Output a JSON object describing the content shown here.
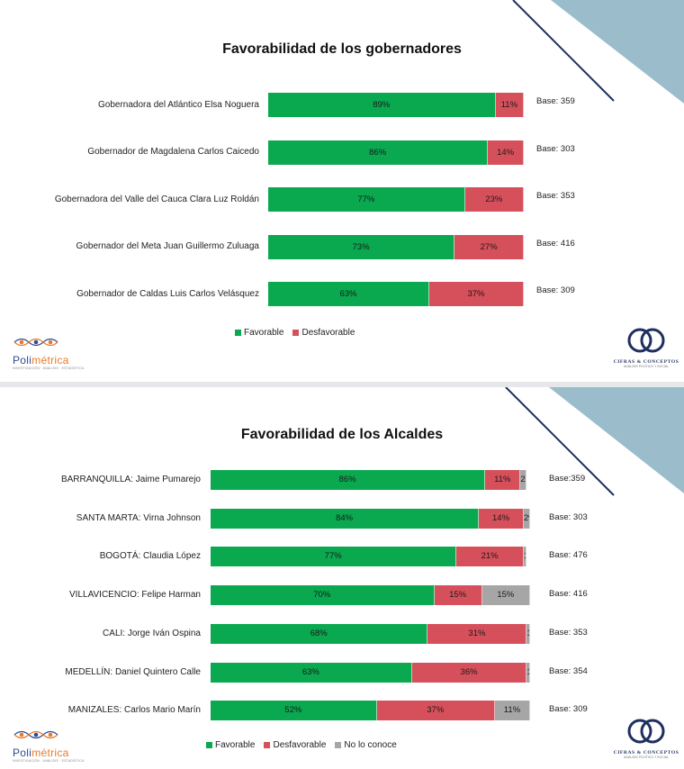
{
  "colors": {
    "favorable": "#0aa84f",
    "desfavorable": "#d6505b",
    "no_lo_conoce": "#a6a6a6",
    "deco_triangle": "#9bbccb",
    "deco_line": "#1f2f5f"
  },
  "chart_data": [
    {
      "type": "bar",
      "orientation": "horizontal",
      "stacked": true,
      "title": "Favorabilidad de los gobernadores",
      "categories": [
        "Gobernadora del Atlántico Elsa Noguera",
        "Gobernador de Magdalena Carlos Caicedo",
        "Gobernadora del Valle del Cauca Clara Luz Roldán",
        "Gobernador del Meta Juan Guillermo Zuluaga",
        "Gobernador de Caldas Luis Carlos Velásquez"
      ],
      "series": [
        {
          "name": "Favorable",
          "values": [
            89,
            86,
            77,
            73,
            63
          ],
          "labels": [
            "89%",
            "86%",
            "77%",
            "73%",
            "63%"
          ]
        },
        {
          "name": "Desfavorable",
          "values": [
            11,
            14,
            23,
            27,
            37
          ],
          "labels": [
            "11%",
            "14%",
            "23%",
            "27%",
            "37%"
          ]
        }
      ],
      "bases": [
        "Base: 359",
        "Base: 303",
        "Base: 353",
        "Base: 416",
        "Base: 309"
      ],
      "legend": [
        "Favorable",
        "Desfavorable"
      ],
      "legend_position": "bottom",
      "xlim": [
        0,
        100
      ]
    },
    {
      "type": "bar",
      "orientation": "horizontal",
      "stacked": true,
      "title": "Favorabilidad de los Alcaldes",
      "categories": [
        "BARRANQUILLA: Jaime Pumarejo",
        "SANTA MARTA: Virna Johnson",
        "BOGOTÁ: Claudia López",
        "VILLAVICENCIO: Felipe Harman",
        "CALI: Jorge Iván Ospina",
        "MEDELLÍN: Daniel Quintero Calle",
        "MANIZALES: Carlos Mario Marín"
      ],
      "series": [
        {
          "name": "Favorable",
          "values": [
            86,
            84,
            77,
            70,
            68,
            63,
            52
          ],
          "labels": [
            "86%",
            "84%",
            "77%",
            "70%",
            "68%",
            "63%",
            "52%"
          ]
        },
        {
          "name": "Desfavorable",
          "values": [
            11,
            14,
            21,
            15,
            31,
            36,
            37
          ],
          "labels": [
            "11%",
            "14%",
            "21%",
            "15%",
            "31%",
            "36%",
            "37%"
          ]
        },
        {
          "name": "No lo conoce",
          "values": [
            2,
            2,
            1,
            15,
            1,
            1,
            11
          ],
          "labels": [
            "2%",
            "2%",
            "1%",
            "15%",
            "1%",
            "1%",
            "11%"
          ]
        }
      ],
      "bases": [
        "Base:359",
        "Base: 303",
        "Base: 476",
        "Base: 416",
        "Base: 353",
        "Base: 354",
        "Base: 309"
      ],
      "legend": [
        "Favorable",
        "Desfavorable",
        "No lo conoce"
      ],
      "legend_position": "bottom",
      "xlim": [
        0,
        100
      ]
    }
  ],
  "logos": {
    "polimetrica": {
      "name_main": "Poli",
      "name_accent": "métrica",
      "tagline": "INVESTIGACIÓN · ANÁLISIS · ESTADÍSTICA"
    },
    "cifras": {
      "monogram": "CC",
      "name": "CIFRAS & CONCEPTOS",
      "tagline": "ANÁLISIS POLÍTICO Y SOCIAL"
    }
  }
}
